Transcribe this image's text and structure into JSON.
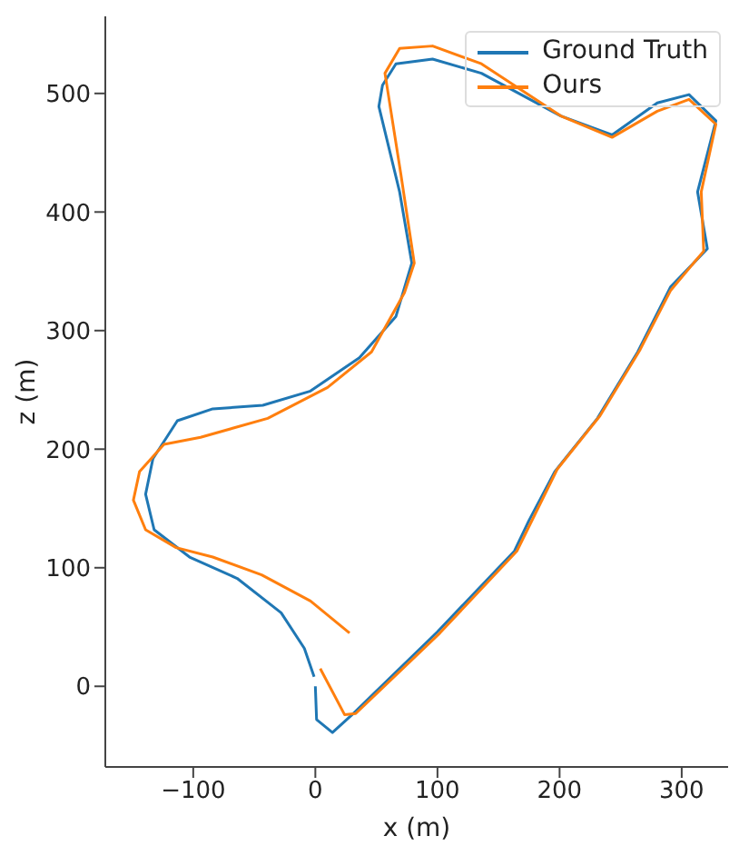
{
  "chart_data": {
    "type": "line",
    "xlabel": "x (m)",
    "ylabel": "z (m)",
    "xlim": [
      -172,
      338
    ],
    "ylim": [
      -68,
      565
    ],
    "xticks": [
      -100,
      0,
      100,
      200,
      300
    ],
    "yticks": [
      0,
      100,
      200,
      300,
      400,
      500
    ],
    "grid": false,
    "legend": "top right",
    "marker": "none",
    "line_style": "solid",
    "series": [
      {
        "name": "Ground Truth",
        "color": "#1f77b4",
        "x": [
          0,
          1,
          14,
          31,
          96,
          100,
          163,
          175,
          196,
          231,
          264,
          291,
          321,
          313,
          328,
          306,
          280,
          243,
          201,
          136,
          96,
          66,
          55,
          52,
          69,
          79,
          66,
          36,
          -4,
          -43,
          -84,
          -113,
          -133,
          -139,
          -132,
          -103,
          -64,
          -28,
          -9,
          -1
        ],
        "values": [
          0,
          -28,
          -39,
          -23,
          42,
          46,
          114,
          140,
          181,
          226,
          282,
          337,
          369,
          417,
          477,
          499,
          492,
          465,
          481,
          517,
          529,
          525,
          507,
          489,
          417,
          357,
          312,
          277,
          249,
          237,
          234,
          224,
          192,
          162,
          132,
          109,
          91,
          62,
          32,
          8
        ]
      },
      {
        "name": "Ours",
        "color": "#ff7f0e",
        "x": [
          28,
          -4,
          -44,
          -84,
          -114,
          -139,
          -149,
          -144,
          -124,
          -94,
          -39,
          10,
          46,
          73,
          81,
          70,
          57,
          69,
          96,
          136,
          201,
          243,
          280,
          306,
          328,
          316,
          318,
          291,
          266,
          233,
          198,
          165,
          102,
          33,
          24,
          4
        ],
        "values": [
          45,
          72,
          94,
          109,
          117,
          132,
          157,
          181,
          204,
          210,
          226,
          252,
          282,
          332,
          357,
          432,
          517,
          538,
          540,
          525,
          481,
          463,
          485,
          495,
          474,
          417,
          367,
          334,
          284,
          228,
          183,
          114,
          45,
          -23,
          -24,
          15
        ]
      }
    ]
  }
}
